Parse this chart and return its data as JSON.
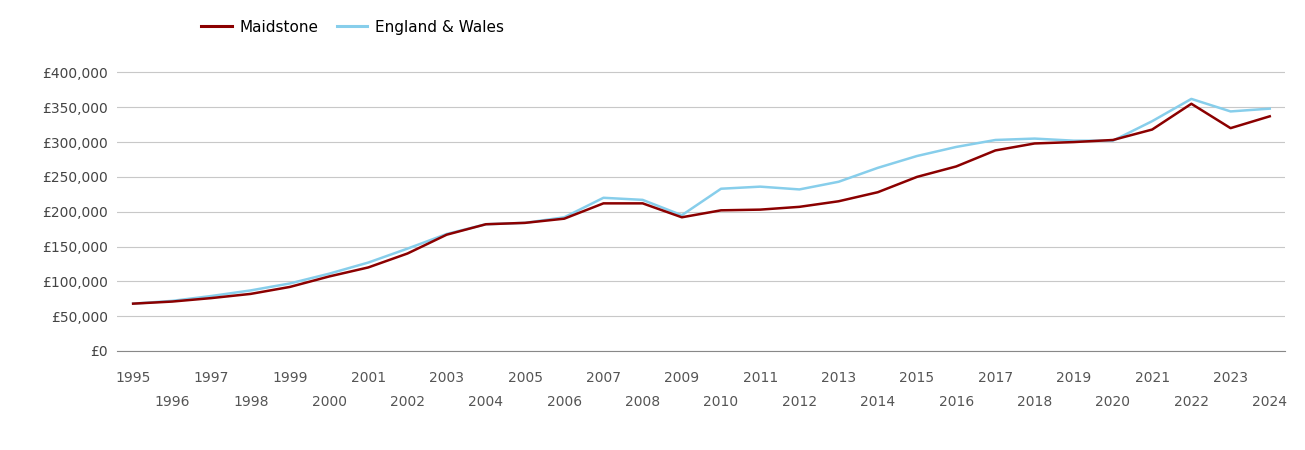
{
  "maidstone": {
    "years": [
      1995,
      1996,
      1997,
      1998,
      1999,
      2000,
      2001,
      2002,
      2003,
      2004,
      2005,
      2006,
      2007,
      2008,
      2009,
      2010,
      2011,
      2012,
      2013,
      2014,
      2015,
      2016,
      2017,
      2018,
      2019,
      2020,
      2021,
      2022,
      2023,
      2024
    ],
    "values": [
      68000,
      71000,
      76000,
      82000,
      92000,
      107000,
      120000,
      140000,
      167000,
      182000,
      184000,
      190000,
      212000,
      212000,
      192000,
      202000,
      203000,
      207000,
      215000,
      228000,
      250000,
      265000,
      288000,
      298000,
      300000,
      303000,
      318000,
      355000,
      320000,
      337000
    ]
  },
  "england_wales": {
    "years": [
      1995,
      1996,
      1997,
      1998,
      1999,
      2000,
      2001,
      2002,
      2003,
      2004,
      2005,
      2006,
      2007,
      2008,
      2009,
      2010,
      2011,
      2012,
      2013,
      2014,
      2015,
      2016,
      2017,
      2018,
      2019,
      2020,
      2021,
      2022,
      2023,
      2024
    ],
    "values": [
      68000,
      72000,
      79000,
      87000,
      97000,
      111000,
      127000,
      147000,
      168000,
      182000,
      184000,
      192000,
      220000,
      217000,
      195000,
      233000,
      236000,
      232000,
      243000,
      263000,
      280000,
      293000,
      303000,
      305000,
      302000,
      302000,
      330000,
      362000,
      344000,
      348000
    ]
  },
  "maidstone_color": "#8B0000",
  "england_wales_color": "#87CEEB",
  "background_color": "#ffffff",
  "grid_color": "#c8c8c8",
  "ylim": [
    0,
    420000
  ],
  "yticks": [
    0,
    50000,
    100000,
    150000,
    200000,
    250000,
    300000,
    350000,
    400000
  ],
  "xlim": [
    1994.6,
    2024.4
  ],
  "xlabel_odd": [
    1995,
    1997,
    1999,
    2001,
    2003,
    2005,
    2007,
    2009,
    2011,
    2013,
    2015,
    2017,
    2019,
    2021,
    2023
  ],
  "xlabel_even": [
    1996,
    1998,
    2000,
    2002,
    2004,
    2006,
    2008,
    2010,
    2012,
    2014,
    2016,
    2018,
    2020,
    2022,
    2024
  ],
  "legend_labels": [
    "Maidstone",
    "England & Wales"
  ],
  "line_width": 1.8,
  "tick_fontsize": 10,
  "legend_fontsize": 11
}
